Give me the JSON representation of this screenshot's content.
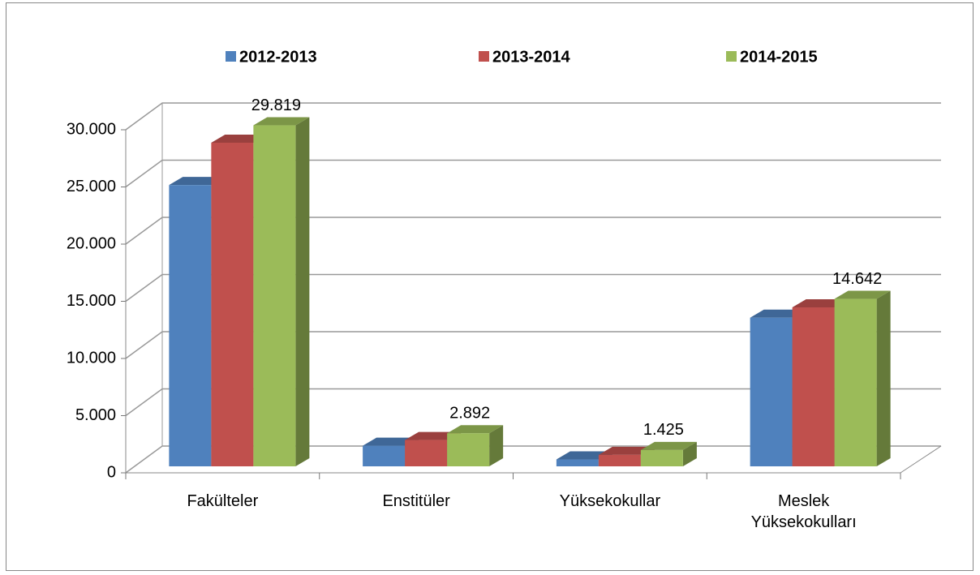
{
  "chart_data": {
    "type": "bar3d",
    "categories": [
      "Fakülteler",
      "Enstitüler",
      "Yüksekokullar",
      "Meslek Yüksekokulları"
    ],
    "series": [
      {
        "name": "2012-2013",
        "color": "#4f81bd",
        "values": [
          24600,
          1800,
          600,
          13000
        ]
      },
      {
        "name": "2013-2014",
        "color": "#c0504d",
        "values": [
          28300,
          2300,
          1000,
          13900
        ]
      },
      {
        "name": "2014-2015",
        "color": "#9bbb59",
        "values": [
          29819,
          2892,
          1425,
          14642
        ],
        "value_labels": [
          "29.819",
          "2.892",
          "1.425",
          "14.642"
        ]
      }
    ],
    "ylim": [
      0,
      30000
    ],
    "yticks": [
      0,
      {
        "value": 5000,
        "label": "5.000"
      },
      {
        "value": 10000,
        "label": "10.000"
      },
      {
        "value": 15000,
        "label": "15.000"
      },
      {
        "value": 20000,
        "label": "20.000"
      },
      {
        "value": 25000,
        "label": "25.000"
      },
      {
        "value": 30000,
        "label": "30.000"
      }
    ],
    "grid": true,
    "legend": "top"
  }
}
